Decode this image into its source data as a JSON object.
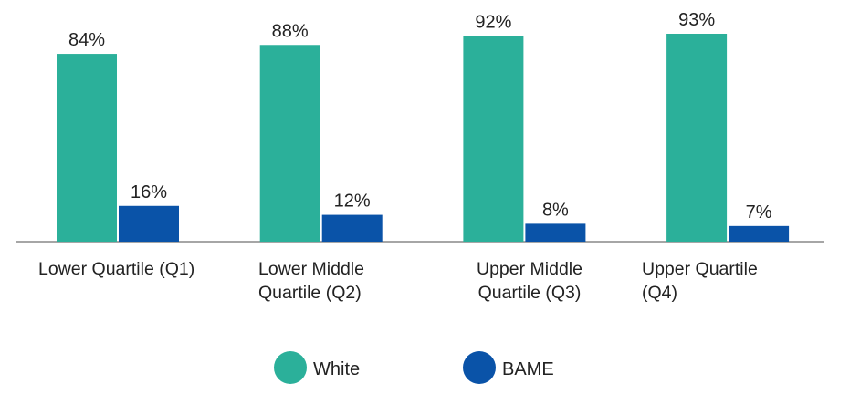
{
  "chart_data": {
    "type": "bar",
    "categories": [
      "Lower Quartile (Q1)",
      "Lower Middle Quartile (Q2)",
      "Upper Middle Quartile (Q3)",
      "Upper Quartile (Q4)"
    ],
    "series": [
      {
        "name": "White",
        "color": "#2bb09a",
        "values": [
          84,
          88,
          92,
          93
        ],
        "value_labels": [
          "84%",
          "88%",
          "92%",
          "93%"
        ]
      },
      {
        "name": "BAME",
        "color": "#0a53a8",
        "values": [
          16,
          12,
          8,
          7
        ],
        "value_labels": [
          "16%",
          "12%",
          "8%",
          "7%"
        ]
      }
    ],
    "legend": "bottom"
  }
}
